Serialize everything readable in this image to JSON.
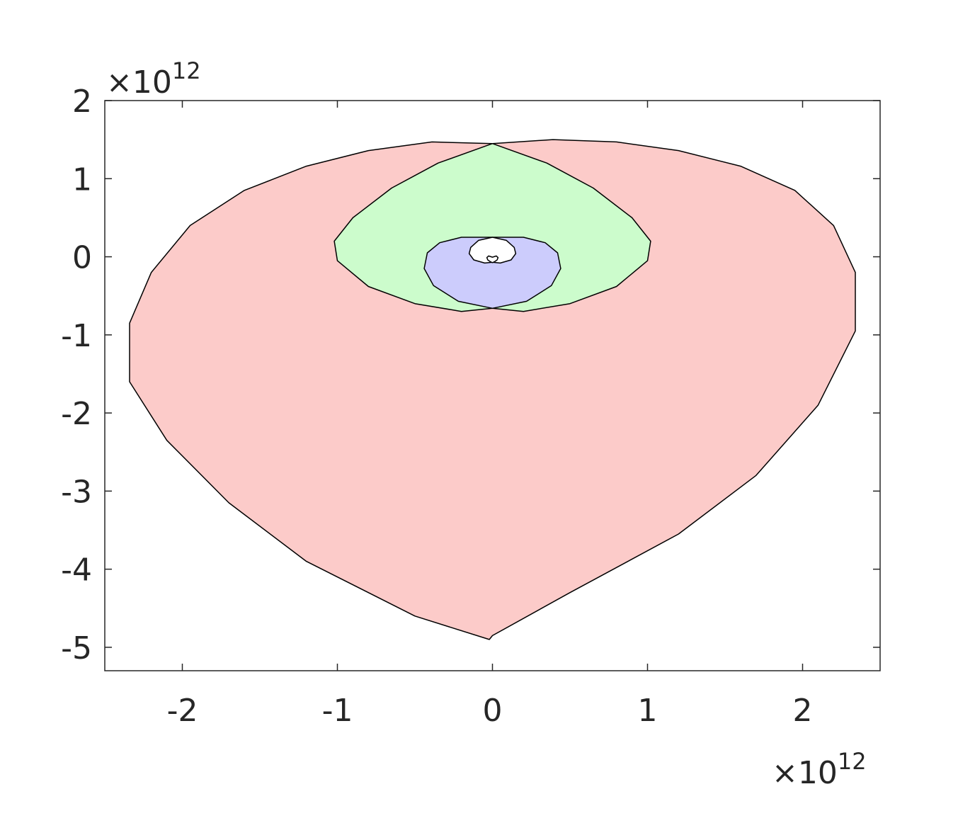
{
  "chart_data": {
    "type": "area",
    "title": "",
    "xlabel": "",
    "ylabel": "",
    "xlim": [
      -2.5,
      2.5
    ],
    "ylim": [
      -5.3,
      2
    ],
    "x_ticks": [
      -2,
      -1,
      0,
      1,
      2
    ],
    "x_tick_labels": [
      "-2",
      "-1",
      "0",
      "1",
      "2"
    ],
    "y_ticks": [
      2,
      1,
      0,
      -1,
      -2,
      -3,
      -4,
      -5
    ],
    "y_tick_labels": [
      "2",
      "1",
      "0",
      "-1",
      "-2",
      "-3",
      "-4",
      "-5"
    ],
    "x_multiplier": {
      "base": "×10",
      "exponent": "12"
    },
    "y_multiplier": {
      "base": "×10",
      "exponent": "12"
    },
    "grid": false,
    "series": [
      {
        "color": "#fccbc9",
        "x": [
          0.0,
          0.39,
          0.8,
          1.2,
          1.6,
          1.95,
          2.2,
          2.34,
          2.34,
          2.1,
          1.7,
          1.2,
          0.5,
          0.0,
          -0.02,
          -0.5,
          -1.2,
          -1.7,
          -2.1,
          -2.34,
          -2.34,
          -2.2,
          -1.95,
          -1.6,
          -1.2,
          -0.8,
          -0.39,
          0.0
        ],
        "y": [
          1.45,
          1.5,
          1.47,
          1.36,
          1.16,
          0.85,
          0.4,
          -0.2,
          -0.95,
          -1.9,
          -2.8,
          -3.55,
          -4.3,
          -4.85,
          -4.9,
          -4.6,
          -3.9,
          -3.15,
          -2.35,
          -1.6,
          -0.85,
          -0.2,
          0.4,
          0.85,
          1.16,
          1.36,
          1.47,
          1.45
        ]
      },
      {
        "color": "#ccfccc",
        "x": [
          0.0,
          0.35,
          0.65,
          0.9,
          1.02,
          1.0,
          0.8,
          0.5,
          0.2,
          0.0,
          -0.2,
          -0.5,
          -0.8,
          -1.0,
          -1.02,
          -0.9,
          -0.65,
          -0.35,
          0.0
        ],
        "y": [
          1.45,
          1.2,
          0.88,
          0.5,
          0.2,
          -0.05,
          -0.38,
          -0.6,
          -0.7,
          -0.66,
          -0.7,
          -0.6,
          -0.38,
          -0.05,
          0.2,
          0.5,
          0.88,
          1.2,
          1.45
        ]
      },
      {
        "color": "#ccccfc",
        "x": [
          0.0,
          0.2,
          0.34,
          0.42,
          0.44,
          0.38,
          0.22,
          0.0,
          -0.22,
          -0.38,
          -0.44,
          -0.42,
          -0.34,
          -0.2,
          0.0
        ],
        "y": [
          0.25,
          0.25,
          0.18,
          0.05,
          -0.15,
          -0.37,
          -0.57,
          -0.66,
          -0.57,
          -0.37,
          -0.15,
          0.05,
          0.18,
          0.25,
          0.25
        ]
      },
      {
        "color": "#ffffff",
        "x": [
          0.0,
          0.09,
          0.14,
          0.15,
          0.12,
          0.05,
          0.0,
          -0.05,
          -0.12,
          -0.15,
          -0.14,
          -0.09,
          0.0
        ],
        "y": [
          0.25,
          0.21,
          0.12,
          0.04,
          -0.04,
          -0.08,
          -0.07,
          -0.08,
          -0.04,
          0.04,
          0.12,
          0.21,
          0.25
        ]
      },
      {
        "color": "#ffffff",
        "x": [
          0.0,
          0.025,
          0.036,
          0.03,
          0.012,
          0.0,
          -0.012,
          -0.03,
          -0.036,
          -0.025,
          0.0
        ],
        "y": [
          -0.005,
          0.01,
          -0.01,
          -0.04,
          -0.065,
          -0.075,
          -0.065,
          -0.04,
          -0.01,
          0.01,
          -0.005
        ]
      }
    ]
  }
}
